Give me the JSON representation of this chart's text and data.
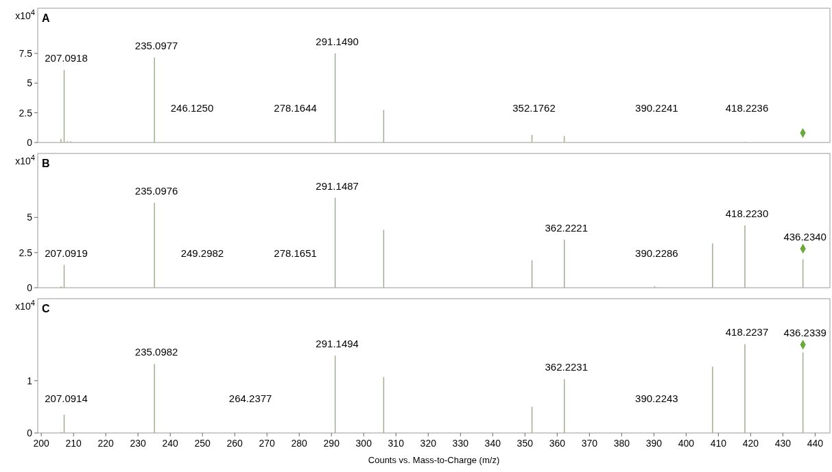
{
  "chart_data": [
    {
      "type": "bar",
      "title": "A",
      "ylabel": "x10$^{4}$",
      "xlim": [
        198.9,
        444.6
      ],
      "ylim": [
        0,
        11.3
      ],
      "yticks": [
        0,
        2.5,
        5,
        7.5
      ],
      "tick_labels": "y",
      "series": [
        {
          "color": "#9fae92",
          "x": [
            206.1,
            207.0918,
            208.1,
            209.1,
            235.0977,
            291.149,
            306.2,
            352.1762,
            362.2,
            418.2236
          ],
          "values": [
            0.3,
            6.1,
            0.1,
            0.1,
            7.15,
            7.5,
            2.73,
            0.64,
            0.55,
            0.05
          ]
        },
        {
          "type": "scatter",
          "marker": "diamond",
          "color": "#6aaa3a",
          "x": [
            436.2
          ],
          "values": [
            0.8
          ]
        }
      ],
      "annotations": [
        {
          "text": "207.0918",
          "x": 207.0918,
          "y": 6.1
        },
        {
          "text": "235.0977",
          "x": 235.0977,
          "y": 7.15
        },
        {
          "text": "291.1490",
          "x": 291.149,
          "y": 7.5
        },
        "246.1250",
        "278.1644",
        {
          "text": "352.1762",
          "x": 352.1762,
          "y": 0.64
        },
        "390.2241",
        {
          "text": "418.2236",
          "x": 418.2236,
          "y": 0.05
        }
      ]
    },
    {
      "type": "bar",
      "title": "B",
      "ylabel": "x10$^{4}$",
      "xlim": [
        198.9,
        444.6
      ],
      "ylim": [
        0,
        9.55
      ],
      "yticks": [
        0,
        2.5,
        5
      ],
      "tick_labels": "y",
      "series": [
        {
          "color": "#9fae92",
          "x": [
            206.1,
            207.0919,
            235.0976,
            291.1487,
            306.2,
            352.2,
            362.2221,
            390.2286,
            408.2,
            418.223,
            436.234
          ],
          "values": [
            0.1,
            1.62,
            6.04,
            6.4,
            4.12,
            1.95,
            3.42,
            0.1,
            3.15,
            4.43,
            2.03
          ]
        },
        {
          "type": "scatter",
          "marker": "diamond",
          "color": "#6aaa3a",
          "x": [
            436.234
          ],
          "values": [
            2.78
          ]
        }
      ],
      "annotations": [
        {
          "text": "207.0919",
          "x": 207.0919,
          "y": 1.62
        },
        {
          "text": "235.0976",
          "x": 235.0976,
          "y": 6.04
        },
        {
          "text": "291.1487",
          "x": 291.1487,
          "y": 6.4
        },
        "249.2982",
        "278.1651",
        {
          "text": "362.2221",
          "x": 362.2221,
          "y": 3.42
        },
        {
          "text": "418.2230",
          "x": 418.223,
          "y": 4.43
        },
        {
          "text": "436.2340",
          "x": 436.234,
          "y": 2.78
        },
        {
          "text": "390.2286",
          "x": 390.2286,
          "y": 0.1
        }
      ]
    },
    {
      "type": "bar",
      "title": "C",
      "ylabel": "x10$^{4}$",
      "xlabel": "Counts vs. Mass-to-Charge (m/z)",
      "xlim": [
        198.9,
        444.6
      ],
      "ylim": [
        0,
        2.57
      ],
      "yticks": [
        0,
        1
      ],
      "xticks": [
        200,
        210,
        220,
        230,
        240,
        250,
        260,
        270,
        280,
        290,
        300,
        310,
        320,
        330,
        340,
        350,
        360,
        370,
        380,
        390,
        400,
        410,
        420,
        430,
        440
      ],
      "series": [
        {
          "color": "#9fae92",
          "x": [
            206.1,
            207.0914,
            235.0982,
            291.1494,
            306.2,
            352.2,
            362.2231,
            408.2,
            418.2237,
            436.2339
          ],
          "values": [
            0.02,
            0.35,
            1.32,
            1.48,
            1.07,
            0.5,
            1.03,
            1.27,
            1.7,
            1.54
          ]
        },
        {
          "type": "scatter",
          "marker": "diamond",
          "color": "#6aaa3a",
          "x": [
            436.2339
          ],
          "values": [
            1.69
          ]
        }
      ],
      "annotations": [
        {
          "text": "207.0914",
          "x": 207.0914,
          "y": 0.35
        },
        {
          "text": "235.0982",
          "x": 235.0982,
          "y": 1.32
        },
        {
          "text": "291.1494",
          "x": 291.1494,
          "y": 1.48
        },
        "264.2377",
        {
          "text": "362.2231",
          "x": 362.2231,
          "y": 1.03
        },
        "390.2243",
        {
          "text": "418.2237",
          "x": 418.2237,
          "y": 1.7
        },
        {
          "text": "436.2339",
          "x": 436.2339,
          "y": 1.69
        }
      ]
    }
  ]
}
